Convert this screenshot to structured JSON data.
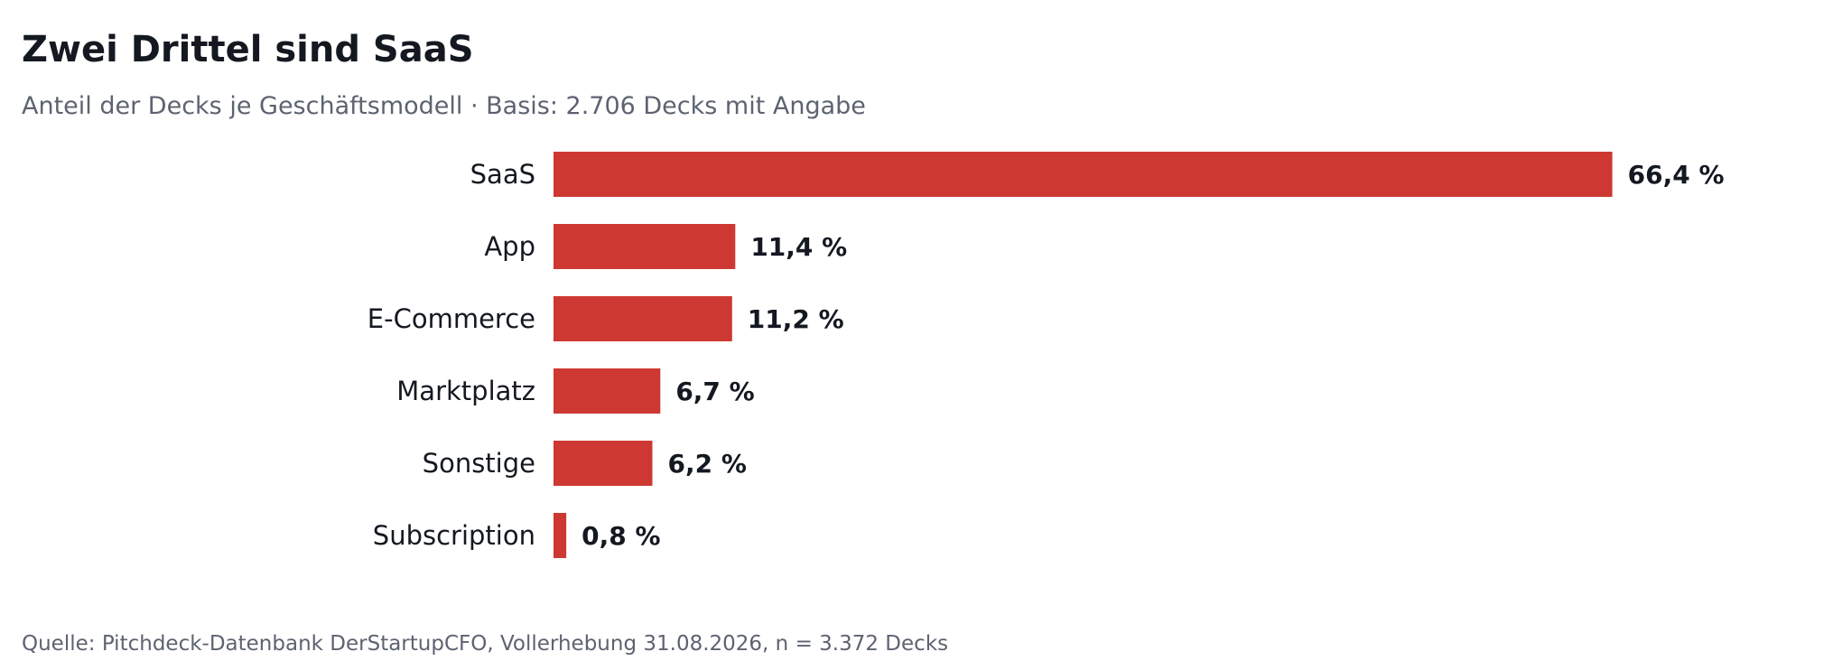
{
  "header": {
    "title": "Zwei Drittel sind SaaS",
    "subtitle": "Anteil der Decks je Geschäftsmodell · Basis: 2.706 Decks mit Angabe"
  },
  "footer": {
    "source": "Quelle: Pitchdeck-Datenbank DerStartupCFO, Vollerhebung 31.08.2026, n = 3.372 Decks"
  },
  "chart_data": {
    "type": "bar",
    "orientation": "horizontal",
    "title": "Zwei Drittel sind SaaS",
    "subtitle": "Anteil der Decks je Geschäftsmodell · Basis: 2.706 Decks mit Angabe",
    "categories": [
      "SaaS",
      "App",
      "E-Commerce",
      "Marktplatz",
      "Sonstige",
      "Subscription"
    ],
    "values": [
      66.4,
      11.4,
      11.2,
      6.7,
      6.2,
      0.8
    ],
    "value_labels": [
      "66,4 %",
      "11,4 %",
      "11,2 %",
      "6,7 %",
      "6,2 %",
      "0,8 %"
    ],
    "unit": "%",
    "xlabel": "",
    "ylabel": "",
    "grid": false,
    "legend": "none",
    "bar_color": "#cd3832"
  }
}
